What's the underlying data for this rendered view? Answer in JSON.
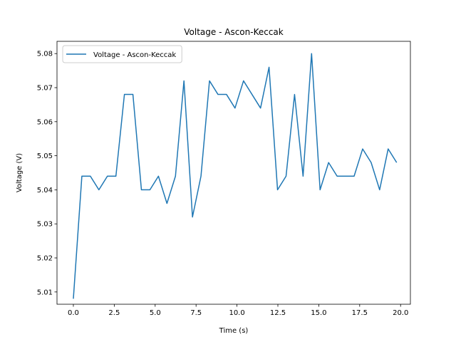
{
  "chart_data": {
    "type": "line",
    "title": "Voltage - Ascon-Keccak",
    "xlabel": "Time (s)",
    "ylabel": "Voltage (V)",
    "xlim": [
      -1.0,
      20.6
    ],
    "ylim": [
      5.0064,
      5.0836
    ],
    "xticks": [
      0.0,
      2.5,
      5.0,
      7.5,
      10.0,
      12.5,
      15.0,
      17.5,
      20.0
    ],
    "xtick_labels": [
      "0.0",
      "2.5",
      "5.0",
      "7.5",
      "10.0",
      "12.5",
      "15.0",
      "17.5",
      "20.0"
    ],
    "yticks": [
      5.01,
      5.02,
      5.03,
      5.04,
      5.05,
      5.06,
      5.07,
      5.08
    ],
    "ytick_labels": [
      "5.01",
      "5.02",
      "5.03",
      "5.04",
      "5.05",
      "5.06",
      "5.07",
      "5.08"
    ],
    "grid": false,
    "legend_position": "upper-left",
    "series": [
      {
        "name": "Voltage - Ascon-Keccak",
        "color": "#1f77b4",
        "x": [
          0.0,
          0.52,
          1.04,
          1.56,
          2.08,
          2.6,
          3.12,
          3.64,
          4.16,
          4.68,
          5.2,
          5.72,
          6.24,
          6.76,
          7.28,
          7.8,
          8.32,
          8.84,
          9.36,
          9.88,
          10.4,
          10.92,
          11.44,
          11.96,
          12.48,
          13.0,
          13.52,
          14.04,
          14.56,
          15.08,
          15.6,
          16.12,
          16.64,
          17.16,
          17.68,
          18.2,
          18.72,
          19.24,
          19.76
        ],
        "y": [
          5.008,
          5.044,
          5.044,
          5.04,
          5.044,
          5.044,
          5.068,
          5.068,
          5.04,
          5.04,
          5.044,
          5.036,
          5.044,
          5.072,
          5.032,
          5.044,
          5.072,
          5.068,
          5.068,
          5.064,
          5.072,
          5.068,
          5.064,
          5.076,
          5.04,
          5.044,
          5.068,
          5.044,
          5.08,
          5.04,
          5.048,
          5.044,
          5.044,
          5.044,
          5.052,
          5.048,
          5.04,
          5.052,
          5.048
        ]
      }
    ]
  }
}
